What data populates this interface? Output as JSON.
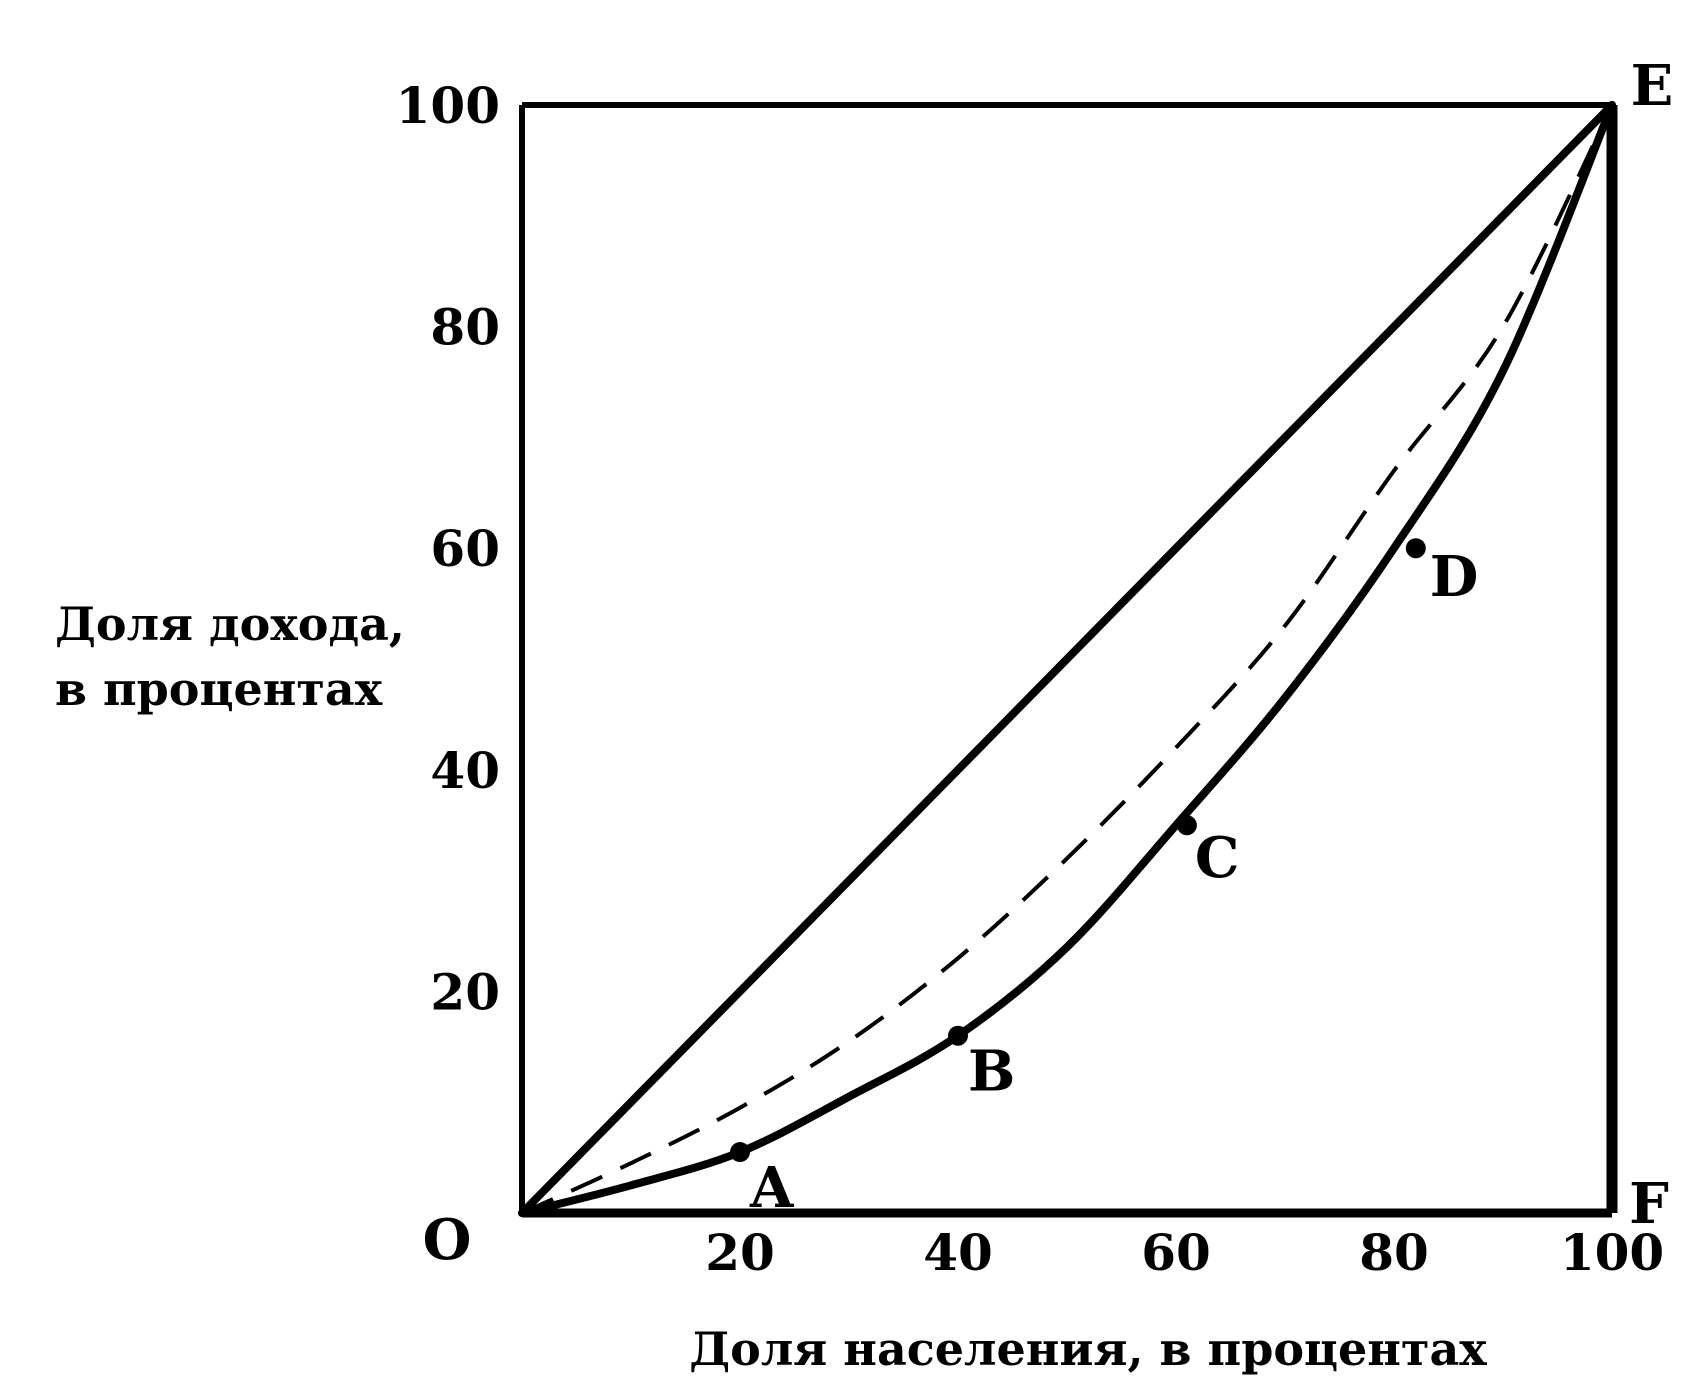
{
  "chart_data": {
    "type": "line",
    "xlabel": "Доля населения, в процентах",
    "ylabel_lines": [
      "Доля дохода,",
      "в процентах"
    ],
    "xlim": [
      0,
      100
    ],
    "ylim": [
      0,
      100
    ],
    "x_ticks": [
      20,
      40,
      60,
      80,
      100
    ],
    "y_ticks": [
      20,
      40,
      60,
      80,
      100
    ],
    "corner_labels": {
      "origin": "O",
      "top_right": "E",
      "bottom_right": "F"
    },
    "series": [
      {
        "style": "solid",
        "x": [
          0,
          100
        ],
        "y": [
          0,
          100
        ]
      },
      {
        "style": "dashed",
        "x": [
          0,
          10,
          20,
          30,
          40,
          50,
          60,
          70,
          80,
          90,
          100
        ],
        "y": [
          0,
          4.5,
          9.5,
          15.5,
          23,
          32,
          42,
          53,
          67,
          80,
          100
        ]
      },
      {
        "style": "solid",
        "x": [
          0,
          10,
          20,
          30,
          40,
          50,
          60,
          70,
          80,
          90,
          100
        ],
        "y": [
          0,
          2.5,
          5.5,
          10.5,
          16,
          24,
          35,
          46.5,
          60,
          76,
          100
        ]
      }
    ],
    "points": [
      {
        "label": "A",
        "x": 20,
        "y": 5.5
      },
      {
        "label": "B",
        "x": 40,
        "y": 16
      },
      {
        "label": "C",
        "x": 61,
        "y": 35
      },
      {
        "label": "D",
        "x": 82,
        "y": 60
      }
    ]
  }
}
